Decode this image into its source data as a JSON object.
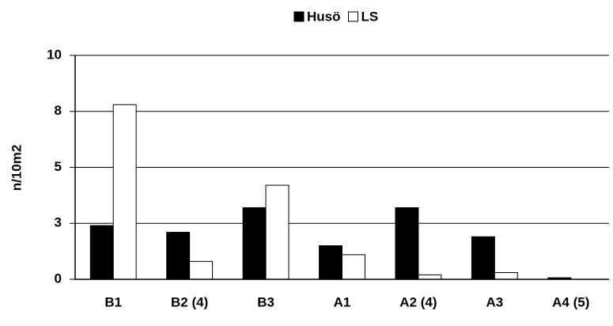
{
  "chart_data": {
    "type": "bar",
    "y_label": "n/10m2",
    "categories": [
      "B1",
      "B2 (4)",
      "B3",
      "A1",
      "A2 (4)",
      "A3",
      "A4 (5)"
    ],
    "series": [
      {
        "name": "Husö",
        "color": "#000000",
        "values": [
          2.4,
          2.1,
          3.2,
          1.5,
          3.2,
          1.9,
          0.07
        ]
      },
      {
        "name": "LS",
        "color": "#ffffff",
        "values": [
          7.8,
          0.8,
          4.2,
          1.1,
          0.2,
          0.3,
          0
        ]
      }
    ],
    "ylim": [
      0,
      10
    ],
    "yticks": [
      0,
      {
        "value": 2.5,
        "label": "3"
      },
      5,
      {
        "value": 7.5,
        "label": "8"
      },
      10
    ],
    "grid": true
  }
}
